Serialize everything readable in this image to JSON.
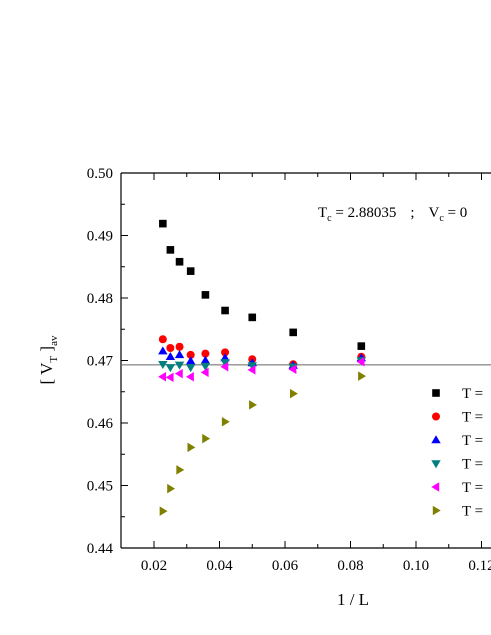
{
  "chart_data": {
    "type": "scatter",
    "xlabel": "1 / L",
    "ylabel": {
      "main": "[ V",
      "sub": "T",
      "close": " ]",
      "tail": "av"
    },
    "annotation": {
      "tc_main": "T",
      "tc_sub": "c",
      "tc_value": " = 2.88035",
      "sep": ";",
      "vc_main": "V",
      "vc_sub": "c",
      "vc_value": " = 0"
    },
    "xlim": [
      0.01,
      0.13
    ],
    "ylim": [
      0.44,
      0.5
    ],
    "xticks": [
      "0.02",
      "0.04",
      "0.06",
      "0.08",
      "0.10",
      "0.12"
    ],
    "yticks": [
      "0.44",
      "0.45",
      "0.46",
      "0.47",
      "0.48",
      "0.49",
      "0.50"
    ],
    "reference_line_y": 0.4693,
    "grid": false,
    "legend_position": "right",
    "series": [
      {
        "label": "T =",
        "marker": "square",
        "color": "#000000",
        "x": [
          0.0227,
          0.025,
          0.0278,
          0.0312,
          0.0357,
          0.0417,
          0.05,
          0.0625,
          0.0833
        ],
        "y": [
          0.4919,
          0.4877,
          0.4858,
          0.4843,
          0.4805,
          0.478,
          0.4769,
          0.4745,
          0.4723
        ]
      },
      {
        "label": "T =",
        "marker": "circle",
        "color": "#ff0000",
        "x": [
          0.0227,
          0.025,
          0.0278,
          0.0312,
          0.0357,
          0.0417,
          0.05,
          0.0625,
          0.0833
        ],
        "y": [
          0.4734,
          0.472,
          0.4722,
          0.4709,
          0.4711,
          0.4713,
          0.4702,
          0.4694,
          0.4706
        ]
      },
      {
        "label": "T =",
        "marker": "triangle-up",
        "color": "#0000ff",
        "x": [
          0.0227,
          0.025,
          0.0278,
          0.0312,
          0.0357,
          0.0417,
          0.05,
          0.0625,
          0.0833
        ],
        "y": [
          0.4715,
          0.4706,
          0.4709,
          0.4699,
          0.47,
          0.4704,
          0.4696,
          0.4692,
          0.4704
        ]
      },
      {
        "label": "T =",
        "marker": "triangle-down",
        "color": "#008080",
        "x": [
          0.0227,
          0.025,
          0.0278,
          0.0312,
          0.0357,
          0.0417,
          0.05,
          0.0625,
          0.0833
        ],
        "y": [
          0.4694,
          0.4689,
          0.4693,
          0.4689,
          0.4691,
          0.4697,
          0.4692,
          0.469,
          0.47
        ]
      },
      {
        "label": "T =",
        "marker": "triangle-left",
        "color": "#ff00ff",
        "x": [
          0.0227,
          0.025,
          0.0278,
          0.0312,
          0.0357,
          0.0417,
          0.05,
          0.0625,
          0.0833
        ],
        "y": [
          0.4674,
          0.4673,
          0.4679,
          0.4674,
          0.4681,
          0.469,
          0.4685,
          0.4686,
          0.4698
        ]
      },
      {
        "label": "T =",
        "marker": "triangle-right",
        "color": "#808000",
        "x": [
          0.0227,
          0.025,
          0.0278,
          0.0312,
          0.0357,
          0.0417,
          0.05,
          0.0625,
          0.0833
        ],
        "y": [
          0.4459,
          0.4495,
          0.4525,
          0.4561,
          0.4575,
          0.4602,
          0.4629,
          0.4647,
          0.4675
        ]
      }
    ]
  }
}
